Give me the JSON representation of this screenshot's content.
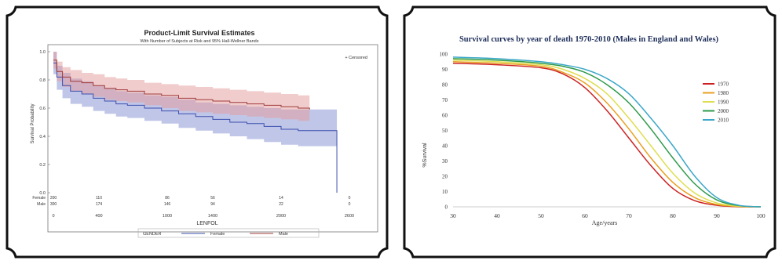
{
  "charts": [
    {
      "type": "line",
      "title": "Product-Limit Survival Estimates",
      "subtitle": "With Number of Subjects at Risk and 95% Hall-Wellner Bands",
      "xlabel": "LENFOL",
      "ylabel": "Survival Probability",
      "xlim": [
        0,
        2800
      ],
      "ylim": [
        0,
        1.0
      ],
      "xticks": [
        "0",
        "400",
        "1000",
        "1400",
        "2000",
        "2600"
      ],
      "xtick_values": [
        0,
        400,
        1000,
        1400,
        2000,
        2600
      ],
      "yticks": [
        "0.0",
        "0.2",
        "0.4",
        "0.6",
        "0.8",
        "1.0"
      ],
      "ytick_values": [
        0,
        0.2,
        0.4,
        0.6,
        0.8,
        1.0
      ],
      "censored_legend": "+ Censored",
      "legend_title": "GENDER",
      "at_risk": {
        "x": [
          0,
          400,
          1000,
          1400,
          2000,
          2600
        ],
        "rows": [
          {
            "label": "Female",
            "values": [
              "200",
              "110",
              "86",
              "56",
              "14",
              "0"
            ]
          },
          {
            "label": "Male",
            "values": [
              "300",
              "174",
              "146",
              "94",
              "22",
              "0"
            ]
          }
        ]
      },
      "series": [
        {
          "name": "Female",
          "color": "#3b4fae",
          "band_color": "#8c98d6",
          "x": [
            0,
            30,
            80,
            150,
            250,
            350,
            450,
            550,
            650,
            800,
            950,
            1100,
            1250,
            1400,
            1550,
            1700,
            1850,
            2000,
            2150,
            2300,
            2480,
            2490
          ],
          "y": [
            0.92,
            0.82,
            0.76,
            0.72,
            0.7,
            0.67,
            0.65,
            0.63,
            0.62,
            0.6,
            0.58,
            0.56,
            0.54,
            0.52,
            0.5,
            0.49,
            0.47,
            0.45,
            0.44,
            0.44,
            0.44,
            0.0
          ],
          "upper": [
            1.0,
            0.9,
            0.85,
            0.81,
            0.79,
            0.76,
            0.74,
            0.72,
            0.71,
            0.69,
            0.68,
            0.66,
            0.64,
            0.63,
            0.62,
            0.61,
            0.6,
            0.59,
            0.59,
            0.59,
            0.59,
            0.0
          ],
          "lower": [
            0.84,
            0.73,
            0.67,
            0.63,
            0.61,
            0.58,
            0.56,
            0.54,
            0.53,
            0.51,
            0.49,
            0.46,
            0.44,
            0.42,
            0.4,
            0.38,
            0.36,
            0.34,
            0.33,
            0.33,
            0.33,
            0.0
          ]
        },
        {
          "name": "Male",
          "color": "#a03a3a",
          "band_color": "#e49a9a",
          "x": [
            0,
            30,
            80,
            150,
            250,
            350,
            450,
            550,
            650,
            800,
            950,
            1100,
            1250,
            1400,
            1550,
            1700,
            1850,
            2000,
            2150,
            2250
          ],
          "y": [
            0.94,
            0.86,
            0.82,
            0.79,
            0.78,
            0.76,
            0.74,
            0.73,
            0.72,
            0.7,
            0.69,
            0.67,
            0.66,
            0.65,
            0.64,
            0.63,
            0.62,
            0.61,
            0.6,
            0.59
          ],
          "upper": [
            1.0,
            0.93,
            0.89,
            0.87,
            0.85,
            0.84,
            0.82,
            0.81,
            0.8,
            0.78,
            0.77,
            0.76,
            0.75,
            0.74,
            0.73,
            0.72,
            0.71,
            0.7,
            0.69,
            0.69
          ],
          "lower": [
            0.88,
            0.79,
            0.75,
            0.72,
            0.7,
            0.68,
            0.66,
            0.65,
            0.64,
            0.62,
            0.6,
            0.58,
            0.57,
            0.56,
            0.55,
            0.54,
            0.53,
            0.52,
            0.51,
            0.5
          ]
        }
      ],
      "grid": false
    },
    {
      "type": "line",
      "title": "Survival curves by year of death 1970-2010 (Males in England and Wales)",
      "xlabel": "Age/years",
      "ylabel": "%Survival",
      "xlim": [
        30,
        100
      ],
      "ylim": [
        0,
        100
      ],
      "xticks": [
        "30",
        "40",
        "50",
        "60",
        "70",
        "80",
        "90",
        "100"
      ],
      "xtick_values": [
        30,
        40,
        50,
        60,
        70,
        80,
        90,
        100
      ],
      "yticks": [
        "0",
        "10",
        "20",
        "30",
        "40",
        "50",
        "60",
        "70",
        "80",
        "90",
        "100"
      ],
      "ytick_values": [
        0,
        10,
        20,
        30,
        40,
        50,
        60,
        70,
        80,
        90,
        100
      ],
      "legend_position": "right",
      "grid": false,
      "series": [
        {
          "name": "1970",
          "color": "#cc2222",
          "x": [
            30,
            40,
            50,
            55,
            60,
            65,
            70,
            75,
            80,
            85,
            90,
            95,
            100
          ],
          "y": [
            94,
            93,
            91,
            87,
            78,
            63,
            45,
            27,
            12,
            4,
            1,
            0,
            0
          ]
        },
        {
          "name": "1980",
          "color": "#e8a020",
          "x": [
            30,
            40,
            50,
            55,
            60,
            65,
            70,
            75,
            80,
            85,
            90,
            95,
            100
          ],
          "y": [
            95,
            94,
            92,
            88,
            81,
            68,
            51,
            32,
            16,
            6,
            1.5,
            0.2,
            0
          ]
        },
        {
          "name": "1990",
          "color": "#dede50",
          "x": [
            30,
            40,
            50,
            55,
            60,
            65,
            70,
            75,
            80,
            85,
            90,
            95,
            100
          ],
          "y": [
            96,
            95,
            93,
            90,
            84,
            74,
            58,
            40,
            22,
            9,
            2.5,
            0.4,
            0
          ]
        },
        {
          "name": "2000",
          "color": "#2e9a4a",
          "x": [
            30,
            40,
            50,
            55,
            60,
            65,
            70,
            75,
            80,
            85,
            90,
            95,
            100
          ],
          "y": [
            97,
            96,
            94,
            92,
            88,
            80,
            68,
            51,
            32,
            15,
            4.5,
            0.8,
            0
          ]
        },
        {
          "name": "2010",
          "color": "#3ba7c9",
          "x": [
            30,
            40,
            50,
            55,
            60,
            65,
            70,
            75,
            80,
            85,
            90,
            95,
            100
          ],
          "y": [
            98,
            97,
            95,
            93,
            90,
            84,
            74,
            58,
            40,
            20,
            6,
            1,
            0
          ]
        }
      ]
    }
  ]
}
